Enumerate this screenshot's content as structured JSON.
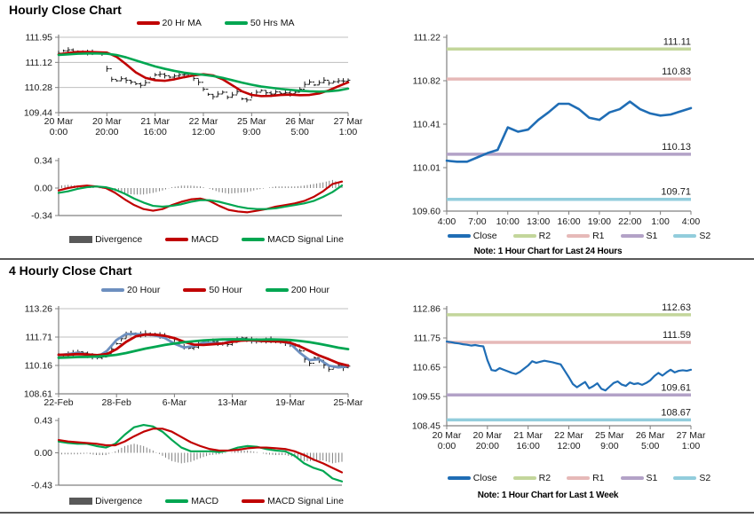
{
  "chart_data": [
    {
      "id": "hourly-price",
      "type": "line",
      "title": "Hourly Close Chart",
      "ylim": [
        109.44,
        111.95
      ],
      "yticks": [
        "111.95",
        "111.12",
        "110.28",
        "109.44"
      ],
      "xticklabels": [
        [
          "20 Mar",
          "0:00"
        ],
        [
          "20 Mar",
          "20:00"
        ],
        [
          "21 Mar",
          "16:00"
        ],
        [
          "22 Mar",
          "12:00"
        ],
        [
          "25 Mar",
          "9:00"
        ],
        [
          "26 Mar",
          "5:00"
        ],
        [
          "27 Mar",
          "1:00"
        ]
      ],
      "legend": [
        {
          "label": "20 Hr MA",
          "color": "#C00000",
          "shape": "line"
        },
        {
          "label": "50 Hrs MA",
          "color": "#00A651",
          "shape": "line"
        }
      ],
      "series": [
        {
          "name": "Close",
          "style": "hlc",
          "color": "#1a1a1a",
          "values": [
            111.42,
            111.5,
            111.53,
            111.48,
            111.45,
            111.46,
            111.44,
            111.45,
            111.43,
            111.4,
            110.9,
            110.55,
            110.5,
            110.57,
            110.52,
            110.46,
            110.4,
            110.35,
            110.44,
            110.58,
            110.7,
            110.72,
            110.67,
            110.62,
            110.66,
            110.7,
            110.71,
            110.66,
            110.58,
            110.45,
            110.22,
            110.05,
            109.97,
            110.06,
            110.12,
            109.95,
            110.03,
            110.14,
            109.9,
            109.86,
            110.02,
            110.12,
            110.18,
            110.1,
            110.06,
            110.13,
            110.08,
            110.1,
            110.07,
            110.12,
            110.22,
            110.38,
            110.46,
            110.36,
            110.44,
            110.52,
            110.42,
            110.47,
            110.5,
            110.49,
            110.52
          ]
        },
        {
          "name": "20 Hr MA",
          "style": "line",
          "color": "#C00000",
          "width": 2.6,
          "values": [
            111.38,
            111.43,
            111.46,
            111.46,
            111.45,
            111.44,
            111.3,
            111.05,
            110.78,
            110.6,
            110.52,
            110.5,
            110.55,
            110.62,
            110.68,
            110.72,
            110.68,
            110.55,
            110.35,
            110.15,
            110.03,
            109.99,
            110.0,
            110.03,
            110.04,
            110.02,
            110.03,
            110.08,
            110.18,
            110.32,
            110.45
          ]
        },
        {
          "name": "50 Hrs MA",
          "style": "line",
          "color": "#00A651",
          "width": 2.6,
          "values": [
            111.36,
            111.38,
            111.4,
            111.41,
            111.41,
            111.4,
            111.36,
            111.28,
            111.18,
            111.08,
            110.98,
            110.9,
            110.83,
            110.77,
            110.73,
            110.7,
            110.66,
            110.6,
            110.52,
            110.44,
            110.37,
            110.31,
            110.27,
            110.23,
            110.2,
            110.17,
            110.15,
            110.14,
            110.15,
            110.18,
            110.24
          ]
        }
      ]
    },
    {
      "id": "hourly-macd",
      "type": "line",
      "ylim": [
        -0.34,
        0.34
      ],
      "yticks": [
        "0.34",
        "0.00",
        "-0.34"
      ],
      "legend": [
        {
          "label": "Divergence",
          "color": "#595959",
          "shape": "bar"
        },
        {
          "label": "MACD",
          "color": "#C00000",
          "shape": "line"
        },
        {
          "label": "MACD Signal Line",
          "color": "#00A651",
          "shape": "line"
        }
      ],
      "series": [
        {
          "name": "Divergence",
          "style": "bars",
          "color": "#737373",
          "values": [
            0.03,
            0.04,
            0.03,
            0.02,
            0.0,
            -0.01,
            -0.04,
            -0.07,
            -0.08,
            -0.08,
            -0.06,
            -0.03,
            0.01,
            0.03,
            0.03,
            0.02,
            -0.01,
            -0.05,
            -0.07,
            -0.06,
            -0.05,
            -0.02,
            0.0,
            0.02,
            0.02,
            0.02,
            0.03,
            0.05,
            0.07,
            0.1,
            0.05
          ]
        },
        {
          "name": "MACD",
          "style": "line",
          "color": "#C00000",
          "width": 2.2,
          "values": [
            -0.03,
            0.0,
            0.02,
            0.03,
            0.02,
            0.0,
            -0.06,
            -0.14,
            -0.21,
            -0.26,
            -0.28,
            -0.26,
            -0.21,
            -0.17,
            -0.14,
            -0.13,
            -0.16,
            -0.22,
            -0.27,
            -0.29,
            -0.3,
            -0.28,
            -0.26,
            -0.23,
            -0.21,
            -0.19,
            -0.16,
            -0.11,
            -0.04,
            0.05,
            0.08
          ]
        },
        {
          "name": "MACD Signal Line",
          "style": "line",
          "color": "#00A651",
          "width": 2.2,
          "values": [
            -0.06,
            -0.04,
            -0.01,
            0.01,
            0.02,
            0.01,
            -0.02,
            -0.07,
            -0.13,
            -0.18,
            -0.22,
            -0.23,
            -0.22,
            -0.2,
            -0.17,
            -0.15,
            -0.15,
            -0.17,
            -0.2,
            -0.23,
            -0.25,
            -0.26,
            -0.26,
            -0.25,
            -0.23,
            -0.21,
            -0.19,
            -0.16,
            -0.11,
            -0.05,
            0.03
          ]
        }
      ]
    },
    {
      "id": "pivot-24h",
      "type": "line",
      "note": "Note: 1 Hour Chart for Last 24 Hours",
      "ylim": [
        109.6,
        111.22
      ],
      "yticks": [
        "111.22",
        "110.82",
        "110.41",
        "110.01",
        "109.60"
      ],
      "xticklabels": [
        "4:00",
        "7:00",
        "10:00",
        "13:00",
        "16:00",
        "19:00",
        "22:00",
        "1:00",
        "4:00"
      ],
      "levels": [
        {
          "name": "R2",
          "value": 111.11,
          "label": "111.11",
          "color": "#C3D69B"
        },
        {
          "name": "R1",
          "value": 110.83,
          "label": "110.83",
          "color": "#E6B9B8"
        },
        {
          "name": "S1",
          "value": 110.13,
          "label": "110.13",
          "color": "#B3A2C7"
        },
        {
          "name": "S2",
          "value": 109.71,
          "label": "109.71",
          "color": "#92CDDC"
        }
      ],
      "legend": [
        {
          "label": "Close",
          "color": "#1F6DB5",
          "shape": "line"
        },
        {
          "label": "R2",
          "color": "#C3D69B",
          "shape": "line"
        },
        {
          "label": "R1",
          "color": "#E6B9B8",
          "shape": "line"
        },
        {
          "label": "S1",
          "color": "#B3A2C7",
          "shape": "line"
        },
        {
          "label": "S2",
          "color": "#92CDDC",
          "shape": "line"
        }
      ],
      "series": [
        {
          "name": "Close",
          "style": "line",
          "color": "#1F6DB5",
          "width": 2.6,
          "values": [
            110.07,
            110.06,
            110.06,
            110.1,
            110.14,
            110.17,
            110.38,
            110.34,
            110.36,
            110.45,
            110.52,
            110.6,
            110.6,
            110.55,
            110.47,
            110.45,
            110.52,
            110.55,
            110.62,
            110.55,
            110.51,
            110.49,
            110.5,
            110.53,
            110.56
          ]
        }
      ]
    },
    {
      "id": "fourh-price",
      "type": "line",
      "title": "4 Hourly Close Chart",
      "ylim": [
        108.61,
        113.26
      ],
      "yticks": [
        "113.26",
        "111.71",
        "110.16",
        "108.61"
      ],
      "xticklabels": [
        "22-Feb",
        "28-Feb",
        "6-Mar",
        "13-Mar",
        "19-Mar",
        "25-Mar"
      ],
      "legend": [
        {
          "label": "20 Hour",
          "color": "#6D8FBF",
          "shape": "line"
        },
        {
          "label": "50 Hour",
          "color": "#C00000",
          "shape": "line"
        },
        {
          "label": "200 Hour",
          "color": "#00A651",
          "shape": "line"
        }
      ],
      "series": [
        {
          "name": "Close",
          "style": "hlc",
          "color": "#1a1a1a",
          "values": [
            110.7,
            110.72,
            110.76,
            110.82,
            110.9,
            110.84,
            110.74,
            110.66,
            110.58,
            110.62,
            110.8,
            111.05,
            111.35,
            111.62,
            111.82,
            111.92,
            111.88,
            111.85,
            111.9,
            111.86,
            111.84,
            111.8,
            111.76,
            111.7,
            111.58,
            111.38,
            111.18,
            111.1,
            111.16,
            111.26,
            111.36,
            111.42,
            111.46,
            111.4,
            111.34,
            111.3,
            111.42,
            111.56,
            111.66,
            111.58,
            111.54,
            111.5,
            111.46,
            111.52,
            111.56,
            111.5,
            111.44,
            111.4,
            111.34,
            111.28,
            110.95,
            110.5,
            110.28,
            110.58,
            110.44,
            110.18,
            109.95,
            110.06,
            110.16,
            110.04,
            110.12
          ]
        },
        {
          "name": "20 Hour",
          "style": "line",
          "color": "#6D8FBF",
          "width": 2.8,
          "values": [
            110.72,
            110.78,
            110.86,
            110.72,
            110.62,
            110.95,
            111.55,
            111.88,
            111.87,
            111.85,
            111.8,
            111.66,
            111.35,
            111.14,
            111.22,
            111.4,
            111.38,
            111.35,
            111.55,
            111.6,
            111.52,
            111.5,
            111.52,
            111.48,
            111.36,
            110.85,
            110.45,
            110.5,
            110.15,
            110.05,
            110.12
          ]
        },
        {
          "name": "50 Hour",
          "style": "line",
          "color": "#C00000",
          "width": 2.8,
          "values": [
            110.74,
            110.75,
            110.78,
            110.76,
            110.72,
            110.78,
            111.05,
            111.45,
            111.75,
            111.85,
            111.84,
            111.78,
            111.65,
            111.45,
            111.3,
            111.28,
            111.32,
            111.36,
            111.45,
            111.52,
            111.54,
            111.5,
            111.48,
            111.46,
            111.4,
            111.2,
            110.95,
            110.7,
            110.5,
            110.28,
            110.15
          ]
        },
        {
          "name": "200 Hour",
          "style": "line",
          "color": "#00A651",
          "width": 2.8,
          "values": [
            110.58,
            110.6,
            110.62,
            110.63,
            110.65,
            110.68,
            110.74,
            110.84,
            110.96,
            111.08,
            111.18,
            111.28,
            111.36,
            111.43,
            111.48,
            111.53,
            111.56,
            111.58,
            111.59,
            111.58,
            111.57,
            111.57,
            111.58,
            111.57,
            111.55,
            111.5,
            111.43,
            111.34,
            111.24,
            111.13,
            111.05
          ]
        }
      ]
    },
    {
      "id": "fourh-macd",
      "type": "line",
      "ylim": [
        -0.43,
        0.43
      ],
      "yticks": [
        "0.43",
        "0.00",
        "-0.43"
      ],
      "legend": [
        {
          "label": "Divergence",
          "color": "#595959",
          "shape": "bar"
        },
        {
          "label": "MACD",
          "color": "#00A651",
          "shape": "line"
        },
        {
          "label": "MACD Signal Line",
          "color": "#C00000",
          "shape": "line"
        }
      ],
      "series": [
        {
          "name": "Divergence",
          "style": "bars",
          "color": "#737373",
          "values": [
            -0.02,
            -0.02,
            -0.02,
            -0.01,
            -0.03,
            -0.03,
            0.02,
            0.09,
            0.12,
            0.09,
            0.03,
            -0.04,
            -0.11,
            -0.14,
            -0.12,
            -0.07,
            -0.03,
            -0.02,
            0.0,
            0.03,
            0.03,
            0.01,
            -0.02,
            -0.03,
            -0.03,
            -0.06,
            -0.11,
            -0.11,
            -0.1,
            -0.14,
            -0.12
          ]
        },
        {
          "name": "MACD",
          "style": "line",
          "color": "#00A651",
          "width": 2.2,
          "values": [
            0.15,
            0.13,
            0.12,
            0.12,
            0.09,
            0.07,
            0.12,
            0.24,
            0.34,
            0.37,
            0.35,
            0.28,
            0.17,
            0.07,
            0.02,
            0.02,
            0.02,
            0.01,
            0.03,
            0.07,
            0.09,
            0.08,
            0.05,
            0.03,
            0.02,
            -0.04,
            -0.14,
            -0.2,
            -0.24,
            -0.34,
            -0.38
          ]
        },
        {
          "name": "MACD Signal Line",
          "style": "line",
          "color": "#C00000",
          "width": 2.2,
          "values": [
            0.17,
            0.15,
            0.14,
            0.13,
            0.12,
            0.1,
            0.1,
            0.15,
            0.22,
            0.28,
            0.32,
            0.32,
            0.28,
            0.21,
            0.14,
            0.09,
            0.05,
            0.03,
            0.03,
            0.04,
            0.06,
            0.07,
            0.07,
            0.06,
            0.05,
            0.02,
            -0.03,
            -0.09,
            -0.14,
            -0.2,
            -0.26
          ]
        }
      ]
    },
    {
      "id": "pivot-week",
      "type": "line",
      "note": "Note: 1 Hour Chart for Last 1 Week",
      "ylim": [
        108.45,
        112.86
      ],
      "yticks": [
        "112.86",
        "111.75",
        "110.65",
        "109.55",
        "108.45"
      ],
      "xticklabels": [
        [
          "20 Mar",
          "0:00"
        ],
        [
          "20 Mar",
          "20:00"
        ],
        [
          "21 Mar",
          "16:00"
        ],
        [
          "22 Mar",
          "12:00"
        ],
        [
          "25 Mar",
          "9:00"
        ],
        [
          "26 Mar",
          "5:00"
        ],
        [
          "27 Mar",
          "1:00"
        ]
      ],
      "levels": [
        {
          "name": "R2",
          "value": 112.63,
          "label": "112.63",
          "color": "#C3D69B"
        },
        {
          "name": "R1",
          "value": 111.59,
          "label": "111.59",
          "color": "#E6B9B8"
        },
        {
          "name": "S1",
          "value": 109.61,
          "label": "109.61",
          "color": "#B3A2C7"
        },
        {
          "name": "S2",
          "value": 108.67,
          "label": "108.67",
          "color": "#92CDDC"
        }
      ],
      "legend": [
        {
          "label": "Close",
          "color": "#1F6DB5",
          "shape": "line"
        },
        {
          "label": "R2",
          "color": "#C3D69B",
          "shape": "line"
        },
        {
          "label": "R1",
          "color": "#E6B9B8",
          "shape": "line"
        },
        {
          "label": "S1",
          "color": "#B3A2C7",
          "shape": "line"
        },
        {
          "label": "S2",
          "color": "#92CDDC",
          "shape": "line"
        }
      ],
      "series": [
        {
          "name": "Close",
          "style": "line",
          "color": "#1F6DB5",
          "width": 2.2,
          "values": [
            111.62,
            111.6,
            111.57,
            111.55,
            111.52,
            111.5,
            111.47,
            111.49,
            111.46,
            111.44,
            110.92,
            110.55,
            110.52,
            110.62,
            110.56,
            110.5,
            110.44,
            110.4,
            110.48,
            110.6,
            110.72,
            110.88,
            110.82,
            110.86,
            110.9,
            110.87,
            110.84,
            110.8,
            110.76,
            110.52,
            110.28,
            110.02,
            109.9,
            110.0,
            110.1,
            109.86,
            109.94,
            110.05,
            109.84,
            109.78,
            109.92,
            110.06,
            110.12,
            110.0,
            109.95,
            110.08,
            110.02,
            110.05,
            109.99,
            110.06,
            110.16,
            110.32,
            110.44,
            110.34,
            110.46,
            110.56,
            110.46,
            110.52,
            110.54,
            110.52,
            110.56
          ]
        }
      ]
    }
  ],
  "colors": {
    "ma_red": "#C00000",
    "ma_green": "#00A651",
    "ma_blue": "#6D8FBF",
    "close_blue": "#1F6DB5",
    "r2": "#C3D69B",
    "r1": "#E6B9B8",
    "s1": "#B3A2C7",
    "s2": "#92CDDC",
    "divergence": "#595959",
    "grid": "#BFBFBF",
    "axis": "#808080"
  }
}
